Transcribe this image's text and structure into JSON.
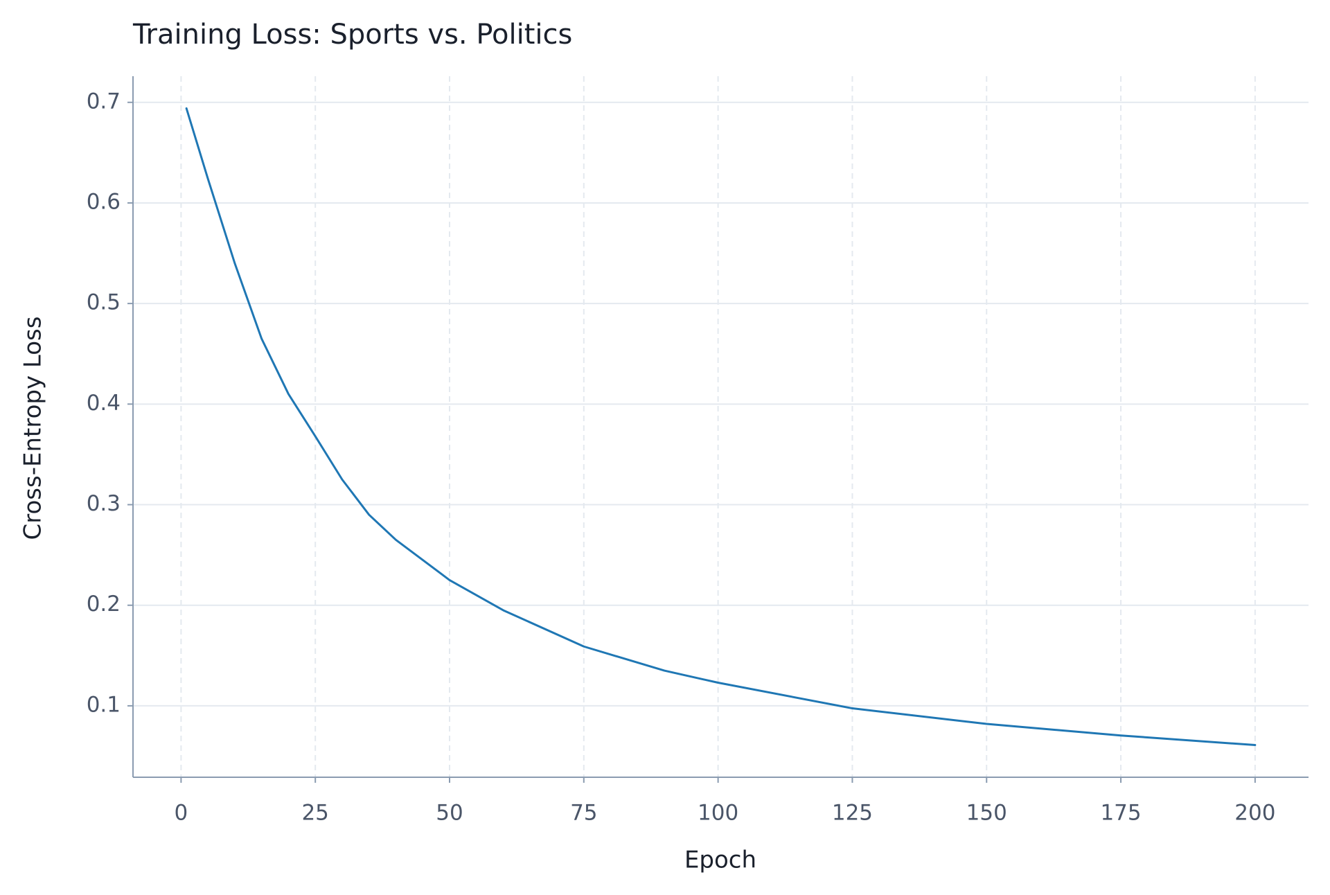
{
  "chart_data": {
    "type": "line",
    "title": "Training Loss: Sports vs. Politics",
    "x_label": "Epoch",
    "y_label": "Cross-Entropy Loss",
    "x": [
      1,
      5,
      10,
      15,
      20,
      25,
      30,
      35,
      40,
      50,
      60,
      75,
      90,
      100,
      125,
      150,
      175,
      200
    ],
    "series": [
      {
        "color": "#1f77b4",
        "values": [
          0.694,
          0.624,
          0.54,
          0.465,
          0.41,
          0.368,
          0.325,
          0.29,
          0.265,
          0.225,
          0.195,
          0.159,
          0.135,
          0.123,
          0.0975,
          0.082,
          0.0705,
          0.061
        ]
      }
    ],
    "xlim": [
      -8.95,
      209.95
    ],
    "ylim": [
      0.029,
      0.726
    ],
    "xticks": [
      0,
      25,
      50,
      75,
      100,
      125,
      150,
      175,
      200
    ],
    "yticks": [
      0.1,
      0.2,
      0.3,
      0.4,
      0.5,
      0.6,
      0.7
    ],
    "grid": true
  }
}
